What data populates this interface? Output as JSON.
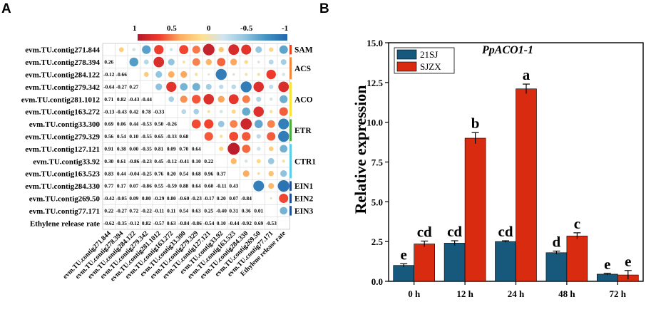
{
  "panel_a": {
    "letter": "A",
    "colorbar": {
      "ticks": [
        "1",
        "0.5",
        "0",
        "-0.5",
        "-1"
      ],
      "colors": [
        "#b2182b",
        "#ef3b2c",
        "#fdae61",
        "#fee090",
        "#d1e5f0",
        "#92c5de",
        "#4393c3",
        "#2166ac"
      ]
    },
    "rows": [
      "evm.TU.contig271.844",
      "evm.TU.contig278.394",
      "evm.TU.contig284.122",
      "evm.TU.contig279.342",
      "evm.TU.contig281.1012",
      "evm.TU.contig163.272",
      "evm.TU.contig33.300",
      "evm.TU.contig279.329",
      "evm.TU.contig127.121",
      "evm.TU.contig33.92",
      "evm.TU.contig163.523",
      "evm.TU.contig284.330",
      "evm.TU.contig269.50",
      "evm.TU.contig77.171",
      "Ethylene release rate"
    ],
    "columns": [
      "evm.TU.contig271.844",
      "evm.TU.contig278.394",
      "evm.TU.contig284.122",
      "evm.TU.contig279.342",
      "evm.TU.contig281.1012",
      "evm.TU.contig163.272",
      "evm.TU.contig33.300",
      "evm.TU.contig279.329",
      "evm.TU.contig127.121",
      "evm.TU.contig33.92",
      "evm.TU.contig163.523",
      "evm.TU.contig284.330",
      "evm.TU.contig269.50",
      "evm.TU.contig77.171",
      "Ethylene release rate"
    ],
    "lower_values": [
      [],
      [
        "0.26"
      ],
      [
        "-0.12",
        "-0.66"
      ],
      [
        "-0.64",
        "-0.27",
        "0.27"
      ],
      [
        "0.71",
        "0.82",
        "-0.43",
        "-0.44"
      ],
      [
        "-0.13",
        "-0.43",
        "0.42",
        "0.78",
        "-0.33"
      ],
      [
        "0.69",
        "0.06",
        "0.44",
        "-0.53",
        "0.50",
        "-0.26"
      ],
      [
        "0.56",
        "0.54",
        "0.10",
        "-0.55",
        "0.65",
        "-0.33",
        "0.68"
      ],
      [
        "0.91",
        "0.38",
        "0.00",
        "-0.35",
        "0.81",
        "0.09",
        "0.70",
        "0.64"
      ],
      [
        "0.30",
        "0.61",
        "-0.86",
        "-0.23",
        "0.45",
        "-0.12",
        "-0.41",
        "0.10",
        "0.22"
      ],
      [
        "0.83",
        "0.44",
        "-0.04",
        "-0.25",
        "0.76",
        "0.20",
        "0.54",
        "0.68",
        "0.96",
        "0.37"
      ],
      [
        "0.77",
        "0.17",
        "0.07",
        "-0.86",
        "0.55",
        "-0.59",
        "0.88",
        "0.64",
        "0.60",
        "-0.11",
        "0.43"
      ],
      [
        "-0.42",
        "-0.05",
        "0.09",
        "0.80",
        "-0.29",
        "0.80",
        "-0.60",
        "-0.23",
        "-0.17",
        "0.20",
        "0.07",
        "-0.84"
      ],
      [
        "0.22",
        "-0.27",
        "0.72",
        "-0.22",
        "-0.11",
        "0.11",
        "0.54",
        "0.63",
        "0.25",
        "-0.40",
        "0.31",
        "0.36",
        "0.01"
      ],
      [
        "-0.62",
        "-0.35",
        "-0.12",
        "0.82",
        "-0.57",
        "0.63",
        "-0.84",
        "-0.86",
        "-0.54",
        "0.10",
        "-0.44",
        "-0.92",
        "0.69",
        "-0.53"
      ]
    ],
    "groups": [
      {
        "label": "SAM",
        "color": "#e8411c"
      },
      {
        "label": "ACS",
        "color": "#f4863b"
      },
      {
        "label": "ACO",
        "color": "#f7e33a"
      },
      {
        "label": "ETR",
        "color": "#4cae3d"
      },
      {
        "label": "CTR1",
        "color": "#5ccde6"
      },
      {
        "label": "EIN1",
        "color": "#1f4e96"
      },
      {
        "label": "EIN2",
        "color": "#1f4e96"
      },
      {
        "label": "EIN3",
        "color": "#1f4e96"
      }
    ]
  },
  "chart_data": {
    "type": "bar",
    "letter": "B",
    "title": "PpACO1-1",
    "categories": [
      "0 h",
      "12 h",
      "24 h",
      "48 h",
      "72 h"
    ],
    "ylabel": "Relative expression",
    "xlabel": "",
    "ylim": [
      0,
      15
    ],
    "yticks": [
      "0.0",
      "2.5",
      "5.0",
      "7.5",
      "10.0",
      "12.5",
      "15.0"
    ],
    "series": [
      {
        "name": "21SJ",
        "color": "#17597d",
        "values": [
          1.0,
          2.4,
          2.5,
          1.8,
          0.45
        ],
        "errors": [
          0.1,
          0.15,
          0.05,
          0.1,
          0.05
        ],
        "letters": [
          "e",
          "cd",
          "cd",
          "d",
          "e"
        ]
      },
      {
        "name": "SJZX",
        "color": "#d92b0f",
        "values": [
          2.35,
          9.0,
          12.1,
          2.85,
          0.4
        ],
        "errors": [
          0.18,
          0.35,
          0.3,
          0.2,
          0.28
        ],
        "letters": [
          "cd",
          "b",
          "a",
          "c",
          "e"
        ]
      }
    ],
    "legend_position": "top-left"
  }
}
